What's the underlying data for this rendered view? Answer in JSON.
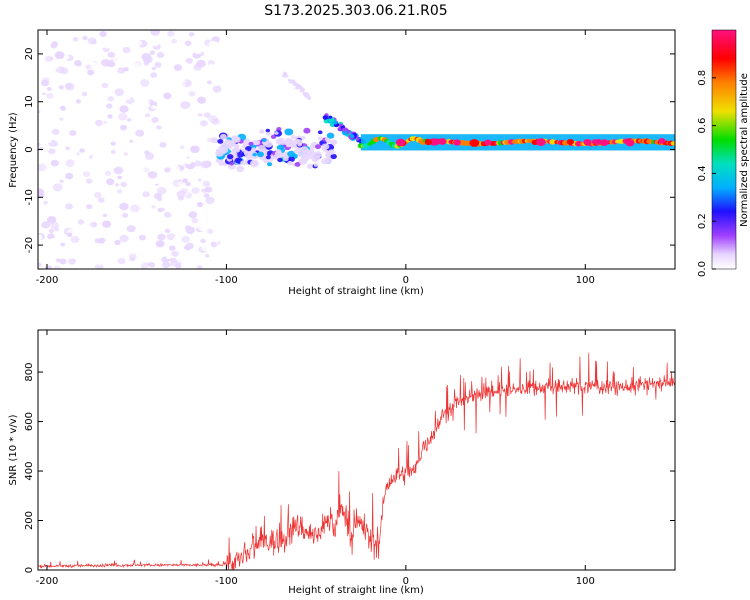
{
  "title": "S173.2025.303.06.21.R05",
  "colors": {
    "snr_line": "#ee3333",
    "colormap": [
      "#ffffff",
      "#e8d6ff",
      "#a040ff",
      "#2010ff",
      "#00b0ff",
      "#00e0c0",
      "#00dd00",
      "#f0e000",
      "#ff8000",
      "#ff0000",
      "#ff1080"
    ]
  },
  "chart_data": [
    {
      "type": "heatmap",
      "title": "S173.2025.303.06.21.R05",
      "xlabel": "Height of straight line (km)",
      "ylabel": "Frequency (Hz)",
      "xlim": [
        -205,
        150
      ],
      "ylim": [
        -25,
        25
      ],
      "xticks": [
        -200,
        -100,
        0,
        100
      ],
      "yticks": [
        -20,
        -10,
        0,
        10,
        20
      ],
      "colorbar": {
        "label": "Normalized spectral amplitude",
        "range": [
          0,
          1
        ],
        "ticks": [
          "0.0",
          "0.2",
          "0.4",
          "0.6",
          "0.8"
        ]
      },
      "features": [
        {
          "x_range": [
            -205,
            -105
          ],
          "freq_range": [
            -25,
            25
          ],
          "amplitude": "0.1-0.4 scattered noise"
        },
        {
          "x_range": [
            -105,
            -40
          ],
          "freq_range": [
            -8,
            8
          ],
          "amplitude": "0.2-0.4 blobs"
        },
        {
          "x_range": [
            -70,
            -55
          ],
          "freq_range": [
            12,
            16
          ],
          "amplitude": "0.3 streak"
        },
        {
          "x_range": [
            -45,
            -25
          ],
          "freq_range": [
            -3,
            8
          ],
          "amplitude": "0.4-0.6 arc"
        },
        {
          "x_range": [
            -20,
            150
          ],
          "freq_range": [
            0,
            2
          ],
          "amplitude": "0.6-1.0 line near 1.5 Hz"
        }
      ]
    },
    {
      "type": "line",
      "xlabel": "Height of straight line (km)",
      "ylabel": "SNR (10 * v/v)",
      "xlim": [
        -205,
        150
      ],
      "ylim": [
        0,
        970
      ],
      "xticks": [
        -200,
        -100,
        0,
        100
      ],
      "yticks": [
        0,
        200,
        400,
        600,
        800
      ],
      "series": [
        {
          "name": "SNR",
          "x": [
            -205,
            -150,
            -105,
            -95,
            -88,
            -80,
            -70,
            -60,
            -50,
            -45,
            -40,
            -35,
            -30,
            -25,
            -20,
            -15,
            -12,
            -8,
            -5,
            0,
            5,
            10,
            15,
            20,
            25,
            30,
            40,
            60,
            80,
            100,
            120,
            150
          ],
          "y": [
            15,
            20,
            20,
            30,
            60,
            120,
            110,
            180,
            130,
            200,
            170,
            260,
            130,
            200,
            120,
            100,
            300,
            370,
            380,
            390,
            400,
            500,
            550,
            620,
            650,
            680,
            710,
            730,
            740,
            745,
            740,
            760
          ]
        }
      ]
    }
  ]
}
